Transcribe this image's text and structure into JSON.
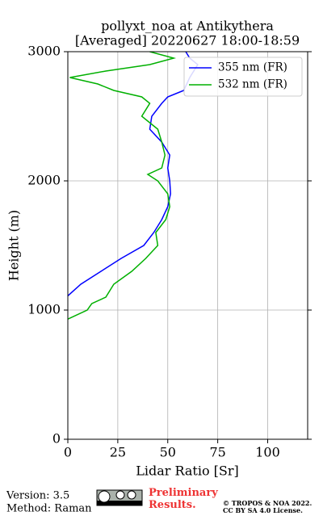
{
  "chart_data": {
    "type": "line",
    "title": "pollyxt_noa at Antikythera",
    "subtitle": "[Averaged] 20220627 18:00-18:59",
    "x_label": "Lidar Ratio [Sr]",
    "y_label": "Height (m)",
    "xlim": [
      0,
      120
    ],
    "xticks": [
      0,
      25,
      50,
      75,
      100
    ],
    "ylim": [
      0,
      3000
    ],
    "yticks": [
      0,
      1000,
      2000,
      3000
    ],
    "grid": true,
    "legend": "upper right",
    "series": [
      {
        "name": "355 nm (FR)",
        "color": "#0000ff",
        "heights": [
          1110,
          1200,
          1300,
          1400,
          1500,
          1600,
          1700,
          1800,
          1900,
          2000,
          2100,
          2200,
          2300,
          2400,
          2500,
          2600,
          2650,
          2700,
          2800,
          2900,
          2950,
          3000
        ],
        "values": [
          0,
          6.5,
          16.6,
          26.7,
          38,
          43,
          47,
          50,
          51.4,
          51,
          50,
          51,
          47,
          41,
          42,
          47,
          50,
          58,
          61,
          65,
          61,
          59
        ]
      },
      {
        "name": "532 nm (FR)",
        "color": "#00b000",
        "heights": [
          930,
          1000,
          1050,
          1100,
          1200,
          1300,
          1400,
          1500,
          1600,
          1700,
          1800,
          1900,
          2000,
          2050,
          2100,
          2200,
          2300,
          2400,
          2500,
          2600,
          2650,
          2700,
          2750,
          2800,
          2850,
          2900,
          2950,
          3000
        ],
        "values": [
          0,
          9.7,
          12,
          19,
          23,
          32,
          39,
          45,
          44,
          49,
          51,
          50,
          45,
          40,
          47,
          48.6,
          47,
          45,
          37,
          41,
          37,
          23,
          15,
          1,
          19,
          41,
          53,
          41
        ]
      }
    ]
  },
  "footer": {
    "version": "Version: 3.5",
    "method": "Method: Raman",
    "preliminary": "Preliminary Results.",
    "copyright": "© TROPOS & NOA 2022.",
    "license": "CC BY SA 4.0 License."
  }
}
